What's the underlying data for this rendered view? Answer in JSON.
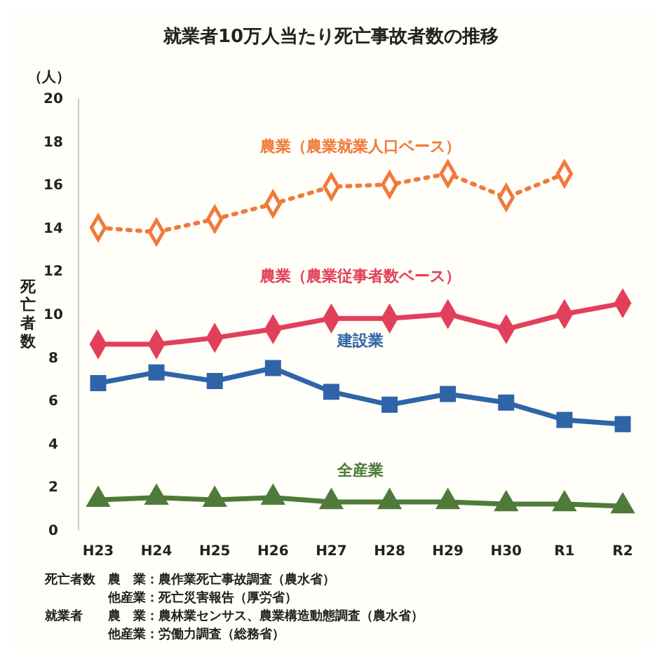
{
  "chart_data": {
    "type": "line",
    "title": "就業者10万人当たり死亡事故者数の推移",
    "ylabel": "死亡者数",
    "categories": [
      "H23",
      "H24",
      "H25",
      "H26",
      "H27",
      "H28",
      "H29",
      "H30",
      "R1",
      "R2"
    ],
    "series": [
      {
        "name": "農業（農業就業人口ベース）",
        "color": "#f07a3a",
        "marker": "diamond",
        "line_style": "dotted",
        "values": [
          14.0,
          13.8,
          14.4,
          15.1,
          15.9,
          16.0,
          16.5,
          15.4,
          16.5,
          null
        ]
      },
      {
        "name": "農業（農業従事者数ベース）",
        "color": "#e2405a",
        "marker": "diamond",
        "line_style": "solid",
        "values": [
          8.6,
          8.6,
          8.9,
          9.3,
          9.8,
          9.8,
          10.0,
          9.3,
          10.0,
          10.5
        ]
      },
      {
        "name": "建設業",
        "color": "#2f64a8",
        "marker": "square",
        "line_style": "solid",
        "values": [
          6.8,
          7.3,
          6.9,
          7.5,
          6.4,
          5.8,
          6.3,
          5.9,
          5.1,
          4.9
        ]
      },
      {
        "name": "全産業",
        "color": "#4f7a3a",
        "marker": "triangle",
        "line_style": "solid",
        "values": [
          1.4,
          1.5,
          1.4,
          1.5,
          1.3,
          1.3,
          1.3,
          1.2,
          1.2,
          1.1
        ]
      }
    ],
    "ylim": [
      0,
      20
    ],
    "yticks": [
      0,
      2,
      4,
      6,
      8,
      10,
      12,
      14,
      16,
      18,
      20
    ],
    "grid": false,
    "annotations": [
      "（人）",
      "死亡者数　農　業：農作業死亡事故調査（農水省）",
      "　　　　　他産業：死亡災害報告（厚労省）",
      "就業者　　農　業：農林業センサス、農業構造動態調査（農水省）",
      "　　　　　他産業：労働力調査（総務省）"
    ]
  }
}
